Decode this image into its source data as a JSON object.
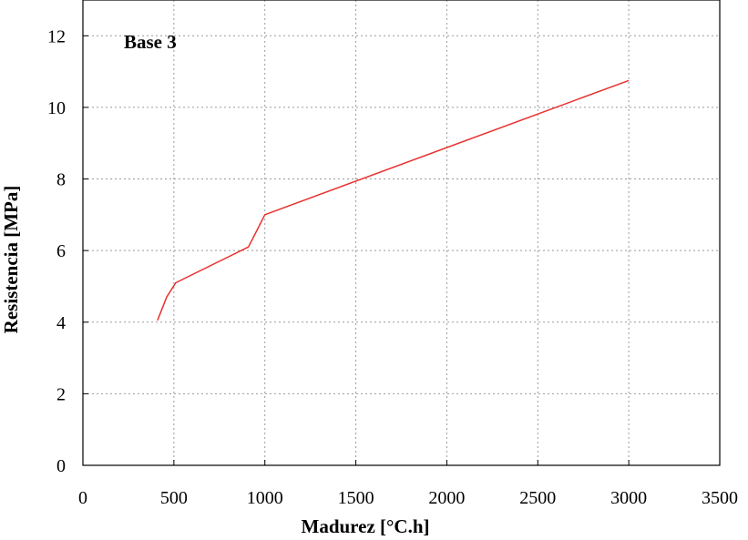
{
  "chart_data": {
    "type": "line",
    "title": "",
    "xlabel": "Madurez [°C.h]",
    "ylabel": "Resistencia [MPa]",
    "annotation": "Base 3",
    "xlim": [
      0,
      3500
    ],
    "ylim": [
      0,
      13
    ],
    "xticks": [
      0,
      500,
      1000,
      1500,
      2000,
      2500,
      3000,
      3500
    ],
    "yticks": [
      0,
      2,
      4,
      6,
      8,
      10,
      12
    ],
    "grid": true,
    "series": [
      {
        "color": "#e8312f",
        "x": [
          410,
          460,
          510,
          910,
          960,
          1000,
          3000
        ],
        "y": [
          4.05,
          4.7,
          5.1,
          6.1,
          6.6,
          7.0,
          10.75
        ]
      }
    ]
  }
}
